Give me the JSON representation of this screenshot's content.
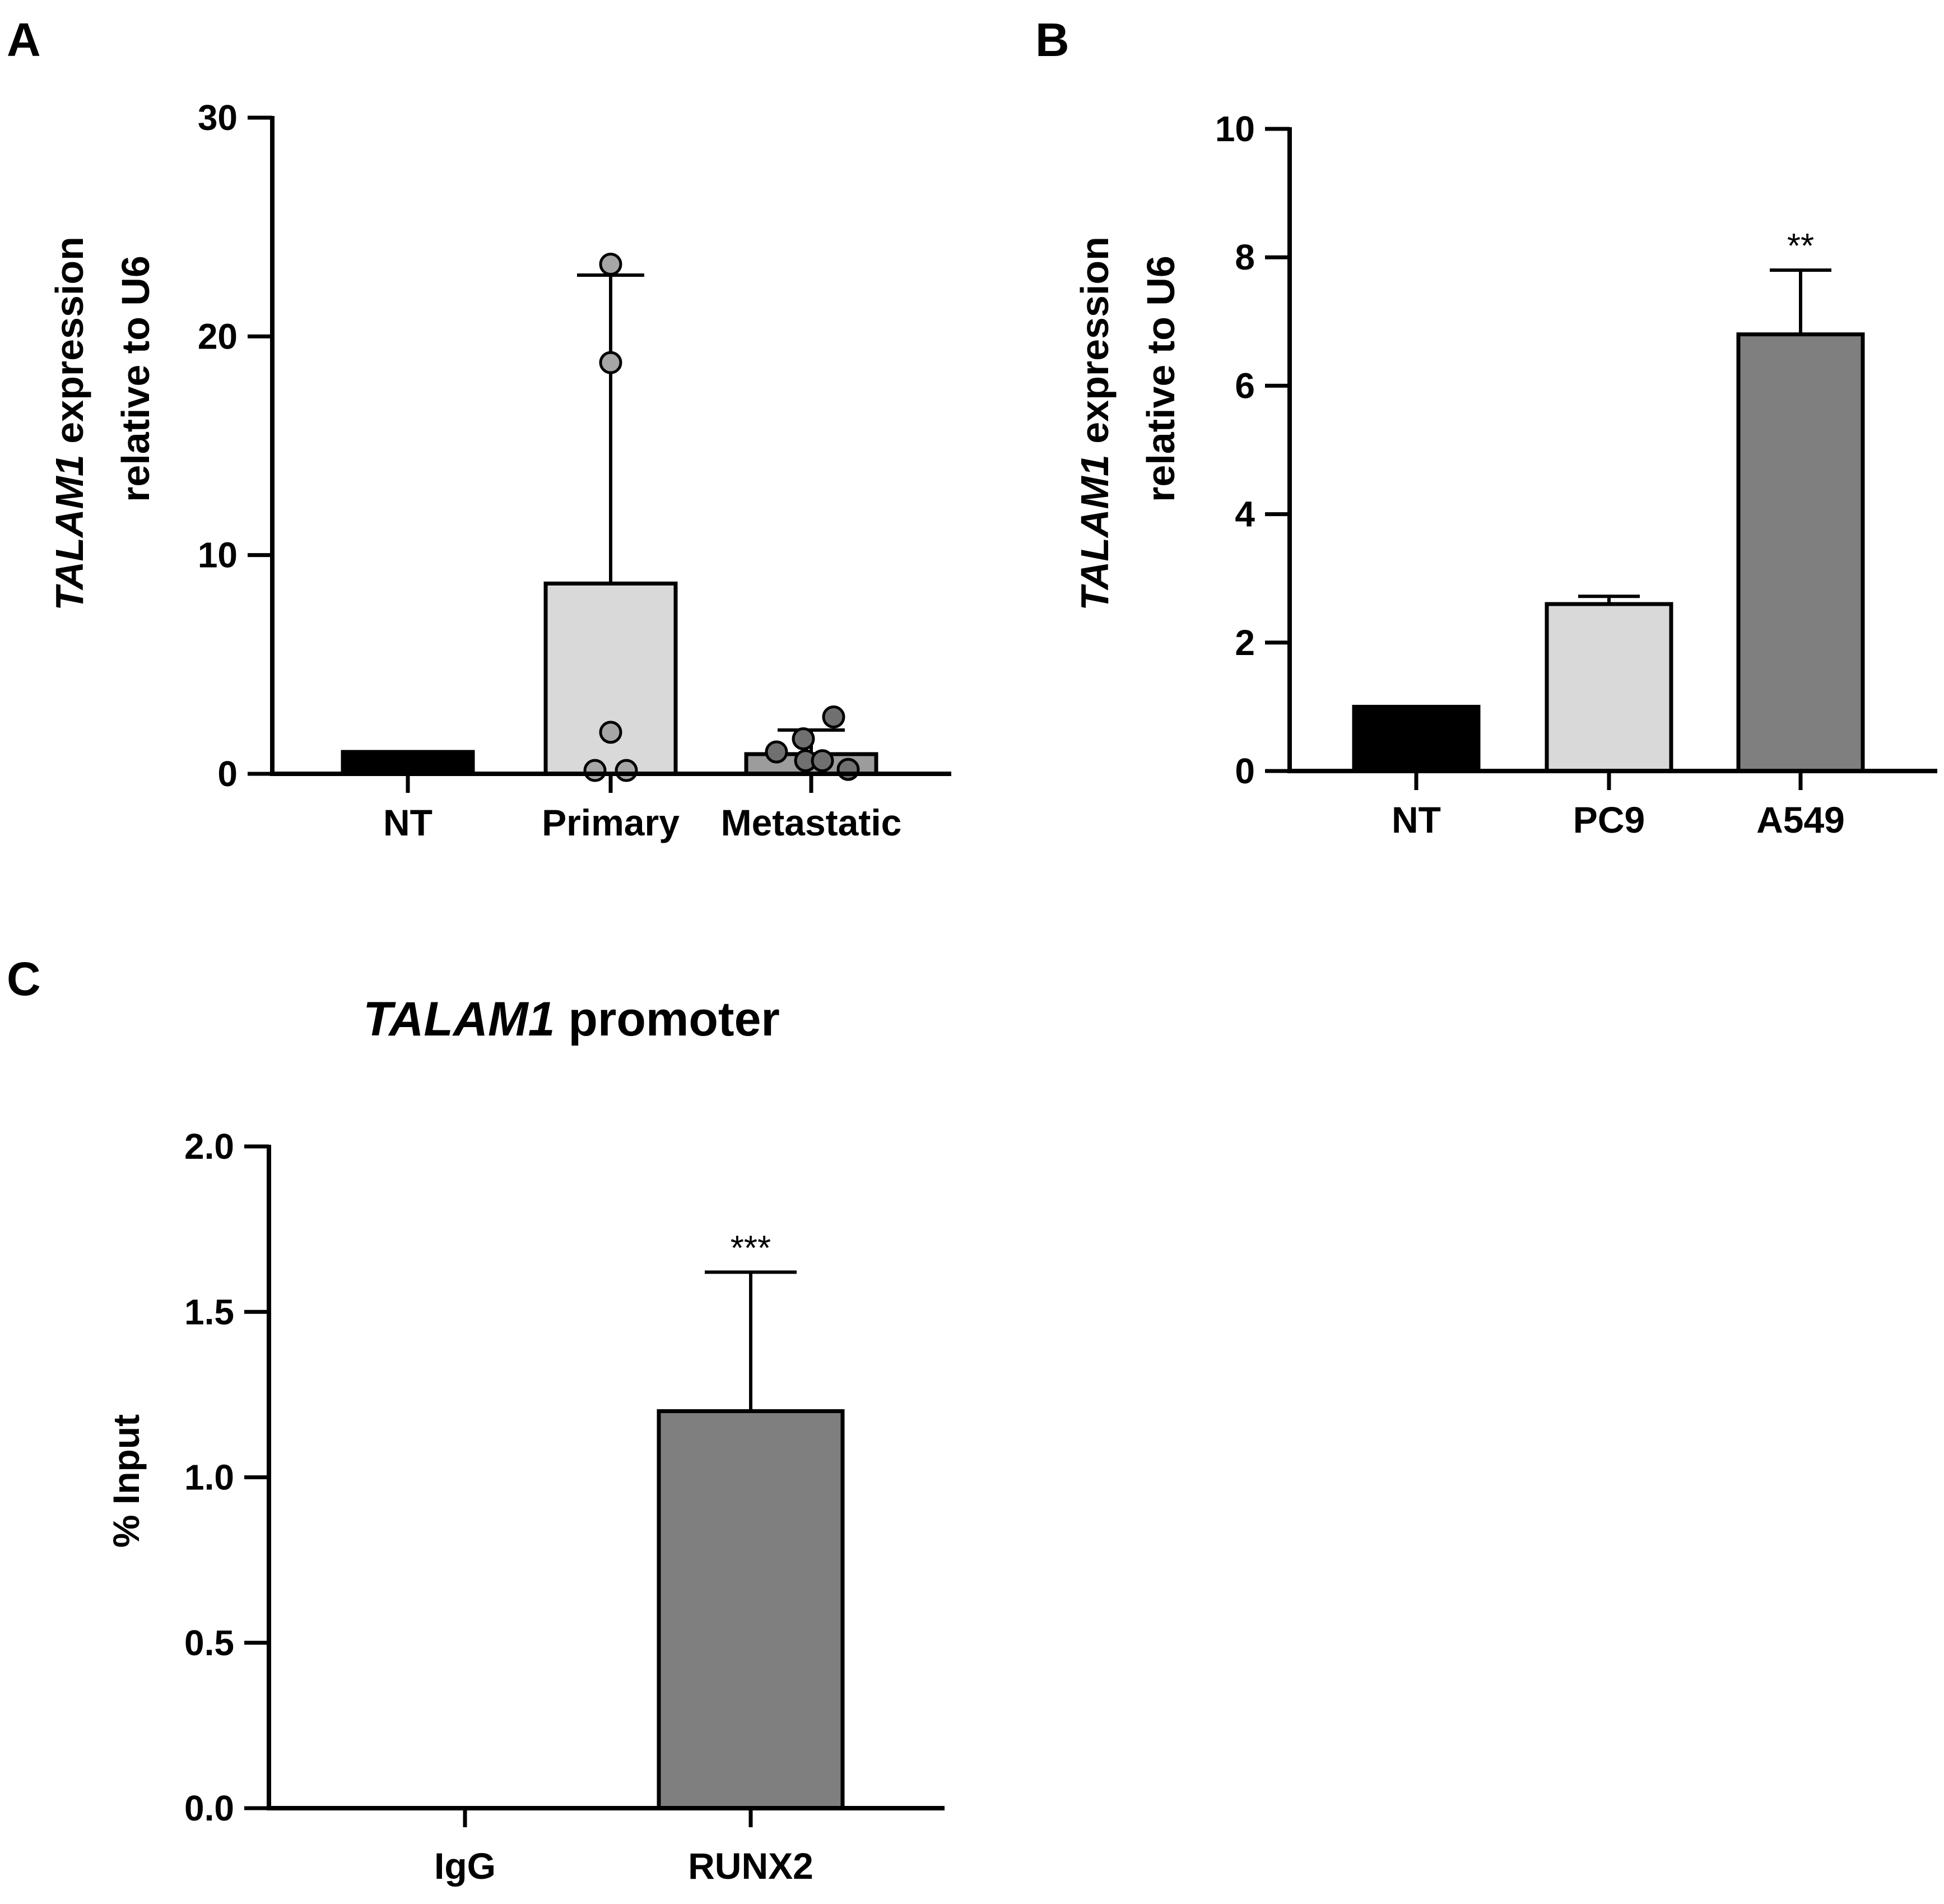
{
  "chart_data": [
    {
      "panel": "A",
      "type": "bar",
      "title": "",
      "ylabel_gene": "TALAM1",
      "ylabel_rest": " expression",
      "ylabel_line2": "relative to U6",
      "ylim": [
        0,
        30
      ],
      "ticks": [
        0,
        10,
        20,
        30
      ],
      "categories": [
        "NT",
        "Primary",
        "Metastatic"
      ],
      "values": [
        1,
        8.7,
        0.9
      ],
      "errors": [
        null,
        14.1,
        1.1
      ],
      "bar_colors": [
        "#000000",
        "#d9d9d9",
        "#9c9c9c"
      ],
      "point_colors": [
        "#000000",
        "#a6a6a6",
        "#707070"
      ],
      "points": [
        [],
        [
          23.3,
          18.8,
          1.9,
          0.05,
          0.05
        ],
        [
          1.0,
          1.6,
          2.6,
          0.6,
          0.6,
          0.1
        ]
      ],
      "significance": [
        null,
        null,
        null
      ]
    },
    {
      "panel": "B",
      "type": "bar",
      "title": "",
      "ylabel_gene": "TALAM1",
      "ylabel_rest": " expression",
      "ylabel_line2": "relative to U6",
      "ylim": [
        0,
        10
      ],
      "ticks": [
        0,
        2,
        4,
        6,
        8,
        10
      ],
      "categories": [
        "NT",
        "PC9",
        "A549"
      ],
      "values": [
        1,
        2.6,
        6.8
      ],
      "errors": [
        null,
        0.12,
        1.0
      ],
      "bar_colors": [
        "#000000",
        "#d9d9d9",
        "#7f7f7f"
      ],
      "points": [
        [],
        [],
        []
      ],
      "significance": [
        null,
        null,
        "**"
      ]
    },
    {
      "panel": "C",
      "type": "bar",
      "title_gene": "TALAM1",
      "title_rest": " promoter",
      "ylabel": "% Input",
      "ylim": [
        0,
        2.0
      ],
      "ticks": [
        "0.0",
        "0.5",
        "1.0",
        "1.5",
        "2.0"
      ],
      "categories": [
        "IgG",
        "RUNX2"
      ],
      "values": [
        0,
        1.2
      ],
      "errors": [
        null,
        0.42
      ],
      "bar_colors": [
        "#000000",
        "#7f7f7f"
      ],
      "points": [
        [],
        []
      ],
      "significance": [
        null,
        "***"
      ]
    }
  ]
}
